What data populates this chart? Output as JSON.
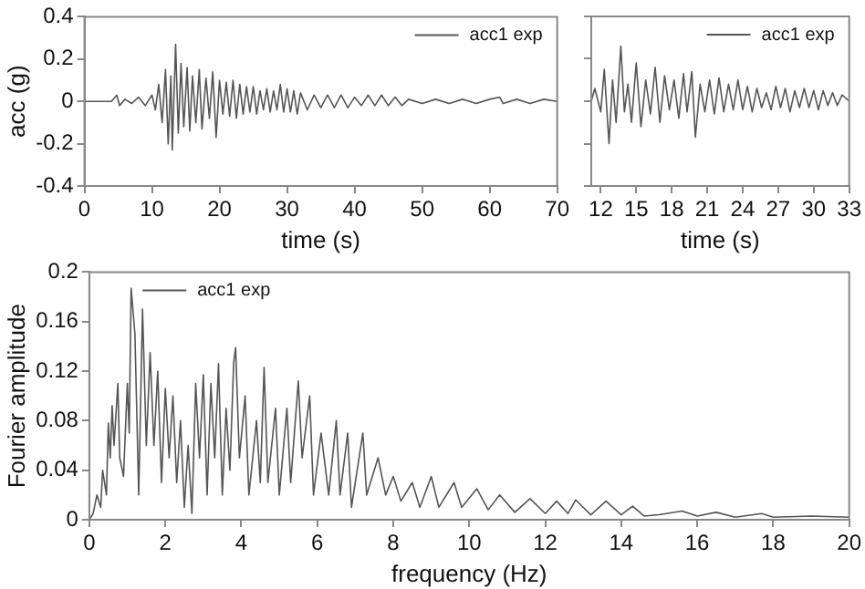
{
  "chart_data": [
    {
      "type": "line",
      "xlabel": "time (s)",
      "ylabel": "acc (g)",
      "xlim": [
        0,
        70
      ],
      "xticks": [
        0,
        10,
        20,
        30,
        40,
        50,
        60,
        70
      ],
      "ylim": [
        -0.4,
        0.4
      ],
      "yticks": [
        -0.4,
        -0.2,
        0,
        0.2,
        0.4
      ],
      "grid": false,
      "legend": "top right",
      "marker": "none",
      "line_style": "solid",
      "series": [
        {
          "name": "acc1 exp",
          "color": "#555555",
          "x": [
            0,
            4,
            4.8,
            5.2,
            6,
            7,
            8,
            9,
            10,
            10.5,
            11,
            11.5,
            12,
            12.4,
            12.8,
            13,
            13.5,
            13.9,
            14.3,
            14.7,
            15.2,
            15.6,
            16,
            16.5,
            17,
            17.4,
            18,
            18.5,
            19,
            19.5,
            20,
            20.5,
            21,
            21.5,
            22,
            22.5,
            23,
            23.5,
            24,
            24.5,
            25,
            25.5,
            26,
            26.5,
            27,
            27.5,
            28,
            28.5,
            29,
            29.5,
            30,
            30.5,
            31,
            31.5,
            32,
            33,
            34,
            35,
            36,
            37,
            38,
            39,
            40,
            41,
            42,
            43,
            44,
            45,
            46,
            47,
            48,
            50,
            52,
            54,
            56,
            58,
            60,
            61.5,
            62,
            64,
            66,
            68,
            70
          ],
          "values": [
            0,
            0,
            0.03,
            -0.02,
            0.01,
            -0.01,
            0.02,
            -0.02,
            0.03,
            -0.04,
            0.08,
            -0.1,
            0.15,
            -0.2,
            0.12,
            -0.23,
            0.27,
            -0.15,
            0.18,
            -0.12,
            0.16,
            -0.14,
            0.12,
            -0.1,
            0.15,
            -0.13,
            0.11,
            -0.08,
            0.14,
            -0.17,
            0.1,
            -0.06,
            0.09,
            -0.07,
            0.1,
            -0.08,
            0.08,
            -0.06,
            0.07,
            -0.05,
            0.07,
            -0.06,
            0.05,
            -0.04,
            0.06,
            -0.05,
            0.05,
            -0.04,
            0.08,
            -0.05,
            0.06,
            -0.05,
            0.05,
            -0.06,
            0.04,
            -0.04,
            0.03,
            -0.03,
            0.03,
            -0.03,
            0.03,
            -0.03,
            0.02,
            -0.02,
            0.03,
            -0.02,
            0.03,
            -0.02,
            0.02,
            -0.02,
            0.01,
            -0.01,
            0.01,
            -0.01,
            0.01,
            -0.01,
            0.01,
            0.02,
            -0.01,
            0.01,
            -0.01,
            0.01,
            0
          ]
        }
      ]
    },
    {
      "type": "line",
      "xlabel": "time (s)",
      "xlim": [
        11.2,
        33
      ],
      "xticks": [
        12,
        15,
        18,
        21,
        24,
        27,
        30,
        33
      ],
      "ylim": [
        -0.4,
        0.4
      ],
      "yticks": [
        -0.4,
        -0.2,
        0,
        0.2,
        0.4
      ],
      "tick_labels": "x",
      "grid": false,
      "legend": "top right",
      "marker": "none",
      "line_style": "solid",
      "series": [
        {
          "name": "acc1 exp",
          "color": "#555555",
          "x": [
            11.2,
            11.5,
            12,
            12.3,
            12.7,
            13,
            13.3,
            13.7,
            14,
            14.3,
            14.6,
            15,
            15.4,
            15.8,
            16.2,
            16.6,
            17,
            17.4,
            17.8,
            18.2,
            18.6,
            19,
            19.3,
            19.7,
            20,
            20.4,
            20.8,
            21.2,
            21.6,
            22,
            22.4,
            22.8,
            23.2,
            23.6,
            24,
            24.4,
            24.8,
            25.2,
            25.6,
            26,
            26.4,
            26.8,
            27.2,
            27.6,
            28,
            28.4,
            28.8,
            29.2,
            29.6,
            30,
            30.4,
            30.8,
            31.2,
            31.6,
            32,
            32.4,
            33
          ],
          "values": [
            0,
            0.06,
            -0.05,
            0.15,
            -0.2,
            0.1,
            -0.1,
            0.26,
            -0.05,
            0.08,
            -0.1,
            0.18,
            -0.12,
            0.1,
            -0.06,
            0.16,
            -0.1,
            0.12,
            -0.04,
            0.1,
            -0.08,
            0.13,
            -0.05,
            0.14,
            -0.17,
            0.08,
            -0.05,
            0.1,
            -0.06,
            0.11,
            -0.05,
            0.08,
            -0.04,
            0.1,
            -0.04,
            0.07,
            -0.05,
            0.06,
            -0.03,
            0.04,
            -0.04,
            0.07,
            -0.03,
            0.06,
            -0.05,
            0.05,
            -0.03,
            0.06,
            -0.03,
            0.05,
            -0.04,
            0.05,
            -0.02,
            0.04,
            -0.02,
            0.03,
            0
          ]
        }
      ]
    },
    {
      "type": "line",
      "xlabel": "frequency (Hz)",
      "ylabel": "Fourier amplitude",
      "xlim": [
        0,
        20
      ],
      "xticks": [
        0,
        2,
        4,
        6,
        8,
        10,
        12,
        14,
        16,
        18,
        20
      ],
      "ylim": [
        0,
        0.2
      ],
      "yticks": [
        0,
        0.04,
        0.08,
        0.12,
        0.16,
        0.2
      ],
      "grid": false,
      "legend": "top left",
      "marker": "none",
      "line_style": "solid",
      "series": [
        {
          "name": "acc1 exp",
          "color": "#555555",
          "x": [
            0,
            0.1,
            0.2,
            0.3,
            0.35,
            0.45,
            0.5,
            0.55,
            0.6,
            0.65,
            0.75,
            0.8,
            0.9,
            1.0,
            1.05,
            1.1,
            1.2,
            1.3,
            1.4,
            1.5,
            1.6,
            1.7,
            1.8,
            1.9,
            2.0,
            2.1,
            2.2,
            2.3,
            2.4,
            2.5,
            2.6,
            2.7,
            2.8,
            2.9,
            3.0,
            3.1,
            3.2,
            3.3,
            3.4,
            3.5,
            3.6,
            3.7,
            3.8,
            3.85,
            3.95,
            4.1,
            4.2,
            4.4,
            4.5,
            4.6,
            4.7,
            4.9,
            5.0,
            5.2,
            5.3,
            5.5,
            5.6,
            5.8,
            5.9,
            6.1,
            6.3,
            6.5,
            6.6,
            6.8,
            6.9,
            7.2,
            7.3,
            7.6,
            7.8,
            8.0,
            8.2,
            8.5,
            8.7,
            9.0,
            9.2,
            9.6,
            9.8,
            10.2,
            10.5,
            10.8,
            11.2,
            11.6,
            12,
            12.3,
            12.6,
            12.8,
            13.2,
            13.6,
            14,
            14.3,
            14.6,
            15,
            15.6,
            16,
            16.5,
            17,
            17.7,
            18,
            19,
            20
          ],
          "values": [
            0,
            0.005,
            0.02,
            0.01,
            0.04,
            0.02,
            0.078,
            0.05,
            0.092,
            0.06,
            0.11,
            0.05,
            0.035,
            0.11,
            0.07,
            0.187,
            0.15,
            0.02,
            0.17,
            0.06,
            0.135,
            0.06,
            0.12,
            0.03,
            0.106,
            0.05,
            0.1,
            0.03,
            0.08,
            0.01,
            0.06,
            0.005,
            0.11,
            0.05,
            0.117,
            0.02,
            0.11,
            0.05,
            0.126,
            0.02,
            0.09,
            0.04,
            0.127,
            0.139,
            0.05,
            0.1,
            0.02,
            0.08,
            0.03,
            0.123,
            0.03,
            0.09,
            0.02,
            0.09,
            0.03,
            0.112,
            0.05,
            0.1,
            0.02,
            0.07,
            0.02,
            0.08,
            0.02,
            0.07,
            0.01,
            0.07,
            0.02,
            0.05,
            0.02,
            0.035,
            0.015,
            0.03,
            0.01,
            0.035,
            0.01,
            0.03,
            0.01,
            0.025,
            0.008,
            0.02,
            0.006,
            0.017,
            0.005,
            0.015,
            0.005,
            0.016,
            0.004,
            0.015,
            0.004,
            0.011,
            0.003,
            0.004,
            0.007,
            0.003,
            0.006,
            0.002,
            0.005,
            0.002,
            0.003,
            0.002
          ]
        }
      ]
    }
  ]
}
